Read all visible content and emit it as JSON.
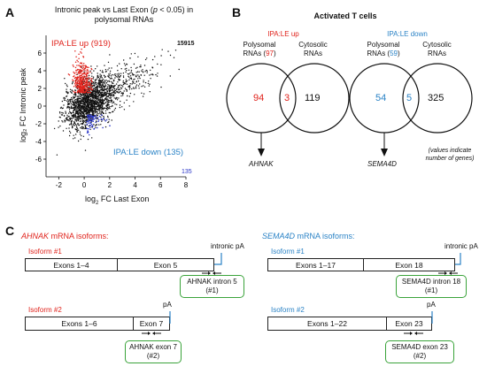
{
  "panelA": {
    "letter": "A",
    "title_line1": "Intronic peak vs Last Exon (",
    "title_p": "p",
    "title_line1_end": " < 0.05) in",
    "title_line2": "polysomal RNAs",
    "up_label": "IPA:LE up (919)",
    "down_label": "IPA:LE down (135)",
    "total_count": "15915",
    "down_count": "135",
    "xlabel_pre": "log",
    "xlabel_sub": "2",
    "xlabel_post": " FC Last Exon",
    "ylabel": "log₂ FC Intronic peak",
    "colors": {
      "up": "#e0231c",
      "down": "#2a35c8",
      "other": "#111111"
    },
    "chart_data": {
      "type": "scatter",
      "title": "Intronic peak vs Last Exon (p < 0.05) in polysomal RNAs",
      "xlabel": "log2 FC Last Exon",
      "ylabel": "log2 FC Intronic peak",
      "xlim": [
        -3,
        8
      ],
      "ylim": [
        -8,
        8
      ],
      "x_ticks": [
        "-2",
        "0",
        "2",
        "4",
        "6",
        "8"
      ],
      "y_ticks": [
        "6",
        "4",
        "2",
        "0",
        "-2",
        "-4",
        "-6"
      ],
      "series": [
        {
          "name": "IPA:LE up",
          "count": 919
        },
        {
          "name": "IPA:LE down",
          "count": 135
        }
      ],
      "total_points": 15915
    }
  },
  "panelB": {
    "letter": "B",
    "title": "Activated T cells",
    "left": {
      "header": "IPA:LE up",
      "set1_line1": "Polysomal",
      "set1_line2_pre": "RNAs (",
      "set1_count": "97",
      "set1_line2_post": ")",
      "set2_line1": "Cytosolic",
      "set2_line2": "RNAs",
      "only_left": "94",
      "overlap": "3",
      "only_right": "119",
      "gene": "AHNAK"
    },
    "right": {
      "header": "IPA:LE down",
      "set1_line1": "Polysomal",
      "set1_line2_pre": "RNAs (",
      "set1_count": "59",
      "set1_line2_post": ")",
      "set2_line1": "Cytosolic",
      "set2_line2": "RNAs",
      "only_left": "54",
      "overlap": "5",
      "only_right": "325",
      "gene": "SEMA4D"
    },
    "note_line1": "(values indicate",
    "note_line2": "number of genes)"
  },
  "panelC": {
    "letter": "C",
    "ahnak": {
      "gene": "AHNAK",
      "title_rest": " mRNA isoforms:",
      "iso1": "Isoform #1",
      "iso1_exonA": "Exons 1–4",
      "iso1_exonB": "Exon 5",
      "iso1_pa": "intronic pA",
      "iso1_primer_l1": "AHNAK intron 5",
      "iso1_primer_l2": "(#1)",
      "iso2": "Isoform #2",
      "iso2_exonA": "Exons 1–6",
      "iso2_exonB": "Exon 7",
      "iso2_pa": "pA",
      "iso2_primer_l1": "AHNAK exon 7",
      "iso2_primer_l2": "(#2)"
    },
    "sema": {
      "gene": "SEMA4D",
      "title_rest": " mRNA isoforms:",
      "iso1": "Isoform #1",
      "iso1_exonA": "Exons 1–17",
      "iso1_exonB": "Exon 18",
      "iso1_pa": "intronic pA",
      "iso1_primer_l1": "SEMA4D intron 18",
      "iso1_primer_l2": "(#1)",
      "iso2": "Isoform #2",
      "iso2_exonA": "Exons 1–22",
      "iso2_exonB": "Exon 23",
      "iso2_pa": "pA",
      "iso2_primer_l1": "SEMA4D exon 23",
      "iso2_primer_l2": "(#2)"
    }
  }
}
